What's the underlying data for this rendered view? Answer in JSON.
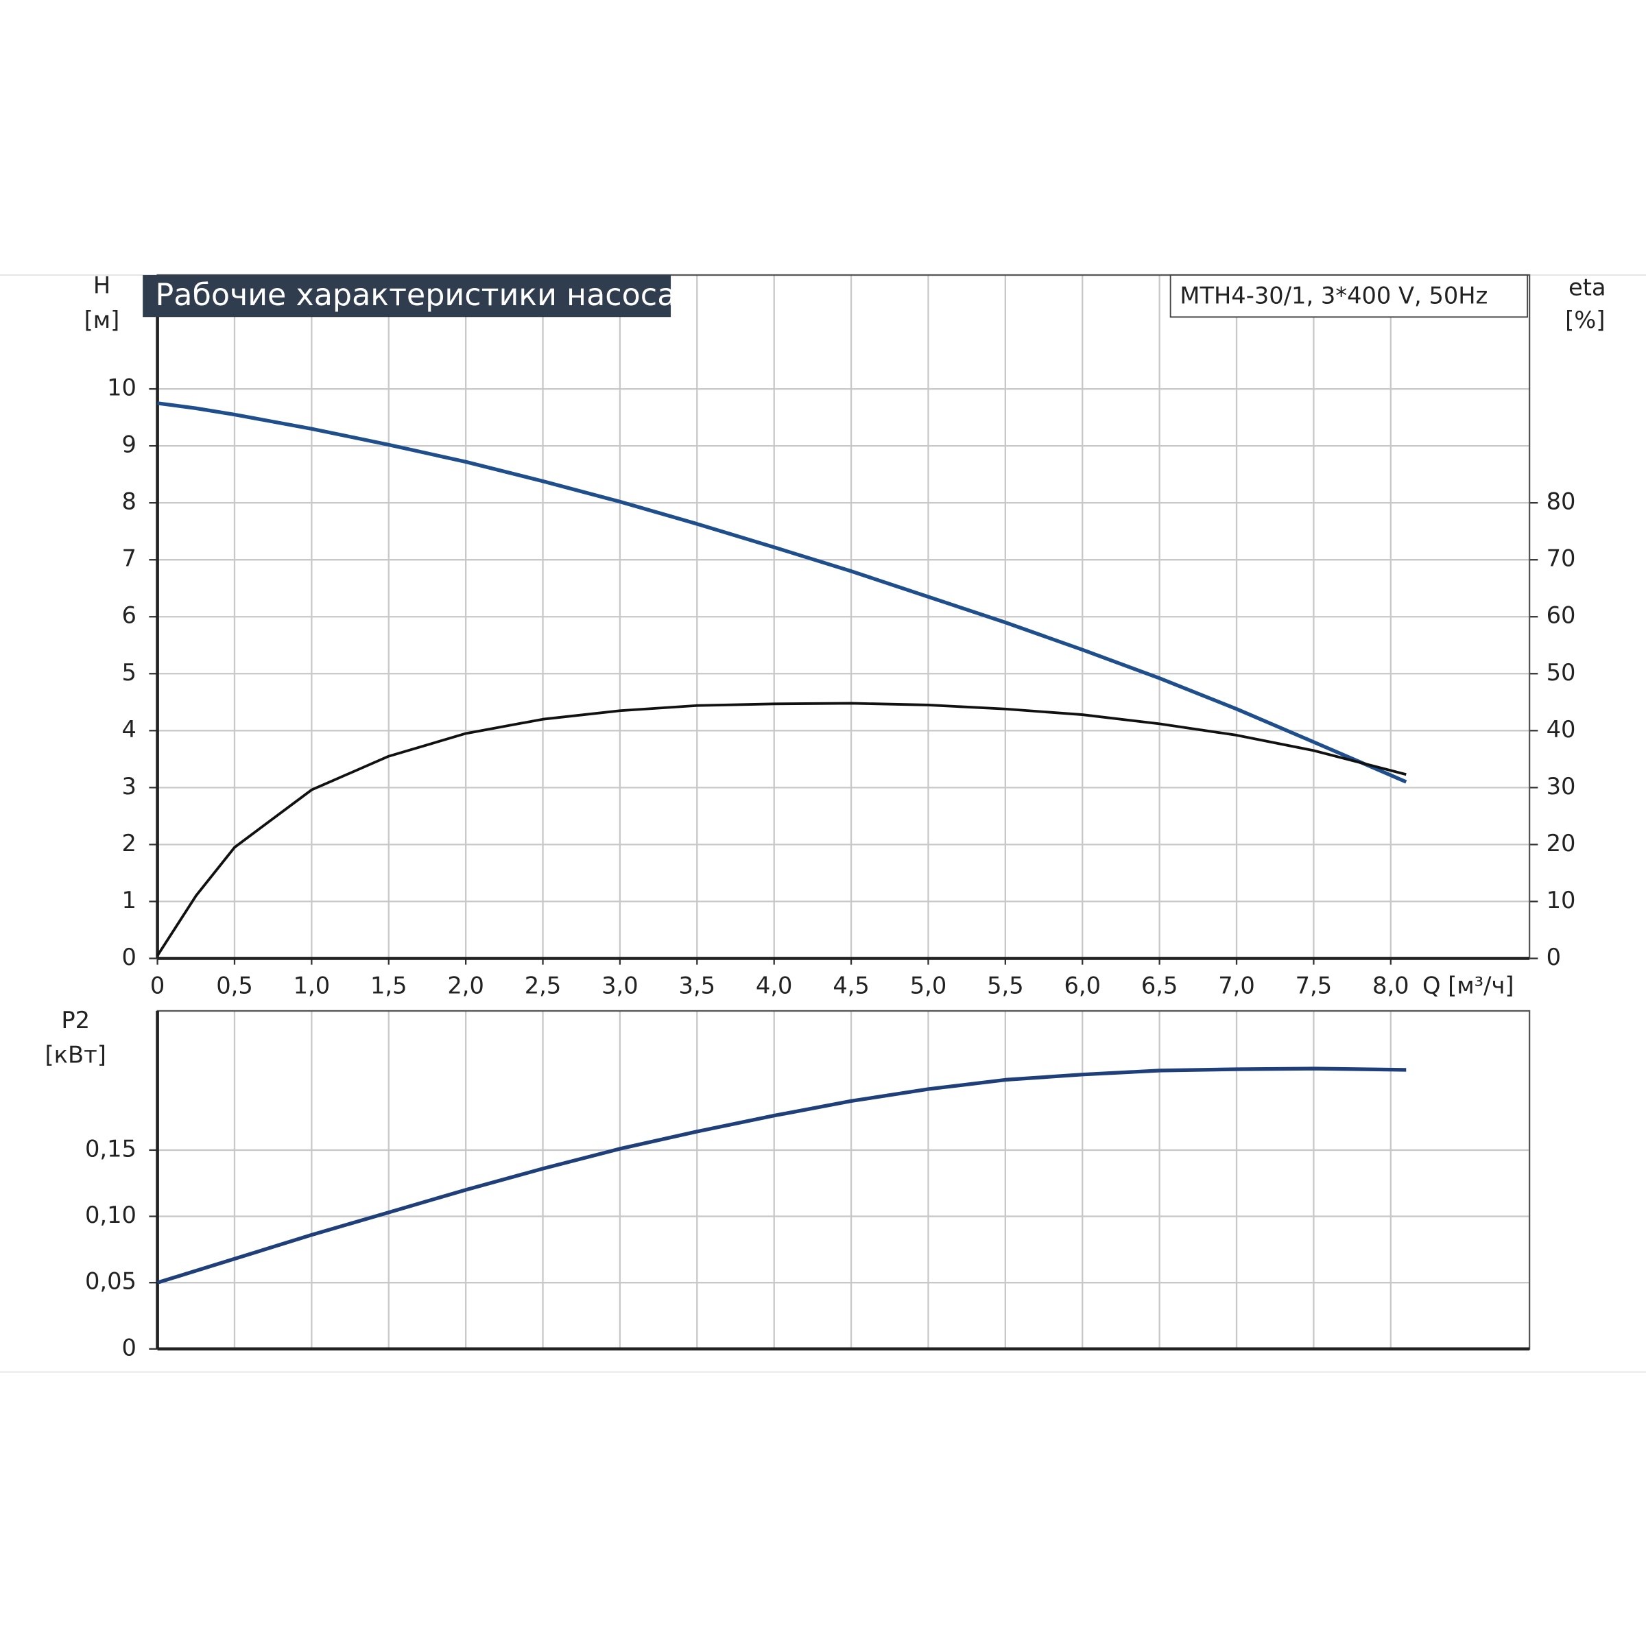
{
  "chart_data": [
    {
      "type": "line",
      "title": "Рабочие характеристики насоса",
      "annotation": "MTH4-30/1, 3*400 V, 50Hz",
      "ylabel": "H",
      "yunit": "[м]",
      "y2label": "eta",
      "y2unit": "[%]",
      "xlabel": "Q [м³/ч]",
      "x": [
        0,
        0.25,
        0.5,
        1.0,
        1.5,
        2.0,
        2.5,
        3.0,
        3.5,
        4.0,
        4.5,
        5.0,
        5.5,
        6.0,
        6.5,
        7.0,
        7.5,
        8.1
      ],
      "series": [
        {
          "color": "#1f4e8c",
          "values": [
            9.75,
            9.66,
            9.55,
            9.3,
            9.02,
            8.72,
            8.38,
            8.02,
            7.63,
            7.22,
            6.8,
            6.35,
            5.9,
            5.42,
            4.92,
            4.38,
            3.8,
            3.1
          ]
        },
        {
          "color": "#111111",
          "axis": "y2",
          "values": [
            0.5,
            11,
            19.5,
            29.6,
            35.5,
            39.5,
            42,
            43.5,
            44.4,
            44.7,
            44.8,
            44.5,
            43.8,
            42.8,
            41.2,
            39.2,
            36.5,
            32.3
          ]
        }
      ],
      "xlim": [
        0,
        8.9
      ],
      "ylim": [
        0,
        12
      ],
      "y2lim": [
        0,
        120
      ],
      "xticks": [
        0,
        {
          "value": 0.5,
          "label": "0,5"
        },
        {
          "value": 1.0,
          "label": "1,0"
        },
        {
          "value": 1.5,
          "label": "1,5"
        },
        {
          "value": 2.0,
          "label": "2,0"
        },
        {
          "value": 2.5,
          "label": "2,5"
        },
        {
          "value": 3.0,
          "label": "3,0"
        },
        {
          "value": 3.5,
          "label": "3,5"
        },
        {
          "value": 4.0,
          "label": "4,0"
        },
        {
          "value": 4.5,
          "label": "4,5"
        },
        {
          "value": 5.0,
          "label": "5,0"
        },
        {
          "value": 5.5,
          "label": "5,5"
        },
        {
          "value": 6.0,
          "label": "6,0"
        },
        {
          "value": 6.5,
          "label": "6,5"
        },
        {
          "value": 7.0,
          "label": "7,0"
        },
        {
          "value": 7.5,
          "label": "7,5"
        },
        {
          "value": 8.0,
          "label": "8,0"
        }
      ],
      "yticks": [
        0,
        1,
        2,
        3,
        4,
        5,
        6,
        7,
        8,
        9,
        10
      ],
      "y2ticks": [
        0,
        10,
        20,
        30,
        40,
        50,
        60,
        70,
        80
      ],
      "grid": true
    },
    {
      "type": "line",
      "ylabel": "P2",
      "yunit": "[кВт]",
      "x": [
        0,
        0.5,
        1.0,
        1.5,
        2.0,
        2.5,
        3.0,
        3.5,
        4.0,
        4.5,
        5.0,
        5.5,
        6.0,
        6.5,
        7.0,
        7.5,
        8.1
      ],
      "series": [
        {
          "color": "#1f3f7a",
          "values": [
            0.05,
            0.068,
            0.086,
            0.103,
            0.12,
            0.136,
            0.151,
            0.164,
            0.176,
            0.187,
            0.196,
            0.203,
            0.207,
            0.21,
            0.211,
            0.2115,
            0.2105
          ]
        }
      ],
      "xlim": [
        0,
        8.9
      ],
      "ylim": [
        0,
        0.255
      ],
      "yticks": [
        0,
        {
          "value": 0.05,
          "label": "0,05"
        },
        {
          "value": 0.1,
          "label": "0,10"
        },
        {
          "value": 0.15,
          "label": "0,15"
        }
      ],
      "grid": true
    }
  ]
}
